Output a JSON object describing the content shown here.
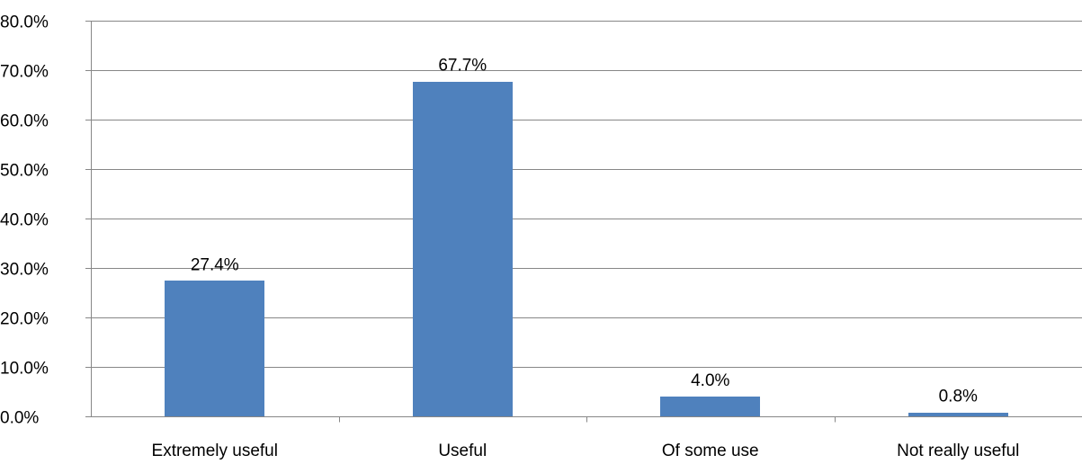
{
  "chart_data": {
    "type": "bar",
    "categories": [
      "Extremely useful",
      "Useful",
      "Of some use",
      "Not really useful"
    ],
    "values": [
      27.4,
      67.7,
      4.0,
      0.8
    ],
    "data_labels": [
      "27.4%",
      "67.7%",
      "4.0%",
      "0.8%"
    ],
    "y_ticks": [
      0,
      10,
      20,
      30,
      40,
      50,
      60,
      70,
      80
    ],
    "y_tick_labels": [
      "0.0%",
      "10.0%",
      "20.0%",
      "30.0%",
      "40.0%",
      "50.0%",
      "60.0%",
      "70.0%",
      "80.0%"
    ],
    "ylim": [
      0,
      80
    ],
    "title": "",
    "xlabel": "",
    "ylabel": "",
    "grid": true,
    "legend": "none",
    "bar_color": "#4F81BD"
  }
}
